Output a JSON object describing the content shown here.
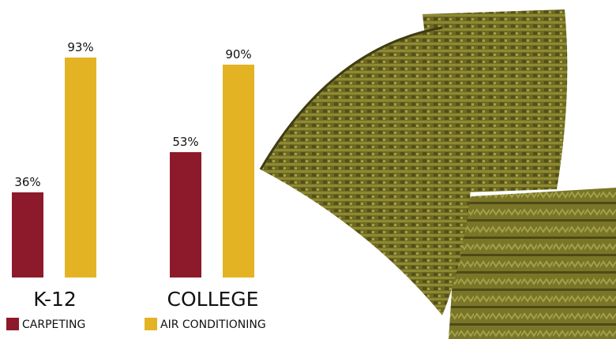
{
  "chart_data": {
    "type": "bar",
    "categories": [
      "K-12",
      "COLLEGE"
    ],
    "series": [
      {
        "name": "CARPETING",
        "color": "#8c1a2a",
        "values": [
          36,
          53
        ],
        "value_labels": [
          "36%",
          "53%"
        ]
      },
      {
        "name": "AIR CONDITIONING",
        "color": "#e4b323",
        "values": [
          93,
          90
        ],
        "value_labels": [
          "93%",
          "90%"
        ]
      }
    ]
  }
}
